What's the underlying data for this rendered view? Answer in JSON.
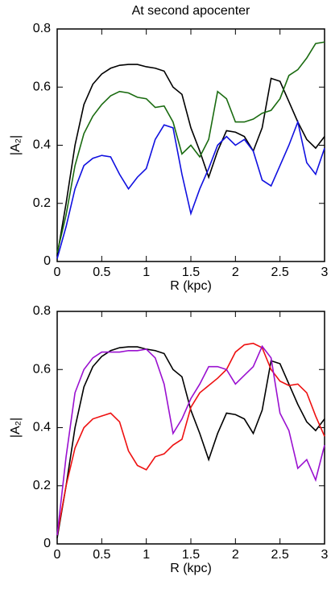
{
  "chart_data": [
    {
      "type": "line",
      "title": "At second apocenter",
      "xlabel": "R (kpc)",
      "ylabel": "|A₂|",
      "x": [
        0,
        0.1,
        0.2,
        0.3,
        0.4,
        0.5,
        0.6,
        0.7,
        0.8,
        0.9,
        1,
        1.1,
        1.2,
        1.3,
        1.4,
        1.5,
        1.6,
        1.7,
        1.8,
        1.9,
        2,
        2.1,
        2.2,
        2.3,
        2.4,
        2.5,
        2.6,
        2.7,
        2.8,
        2.9,
        3
      ],
      "series": [
        {
          "color": "#000000",
          "values": [
            0.02,
            0.2,
            0.4,
            0.54,
            0.61,
            0.645,
            0.665,
            0.675,
            0.678,
            0.678,
            0.67,
            0.665,
            0.655,
            0.6,
            0.575,
            0.46,
            0.38,
            0.29,
            0.38,
            0.45,
            0.445,
            0.43,
            0.38,
            0.46,
            0.63,
            0.62,
            0.55,
            0.48,
            0.42,
            0.39,
            0.43
          ]
        },
        {
          "color": "#1a6b10",
          "values": [
            0.03,
            0.16,
            0.33,
            0.44,
            0.5,
            0.54,
            0.57,
            0.585,
            0.58,
            0.565,
            0.56,
            0.53,
            0.535,
            0.48,
            0.37,
            0.4,
            0.36,
            0.42,
            0.585,
            0.56,
            0.48,
            0.48,
            0.49,
            0.51,
            0.52,
            0.56,
            0.64,
            0.66,
            0.7,
            0.75,
            0.755
          ]
        },
        {
          "color": "#1010e0",
          "values": [
            0.01,
            0.12,
            0.25,
            0.33,
            0.355,
            0.365,
            0.36,
            0.3,
            0.25,
            0.29,
            0.32,
            0.42,
            0.47,
            0.46,
            0.3,
            0.165,
            0.25,
            0.32,
            0.4,
            0.43,
            0.4,
            0.42,
            0.38,
            0.28,
            0.26,
            0.33,
            0.4,
            0.48,
            0.34,
            0.3,
            0.39
          ]
        }
      ],
      "xlim": [
        0,
        3
      ],
      "ylim": [
        0,
        0.8
      ],
      "xticks": [
        0,
        0.5,
        1,
        1.5,
        2,
        2.5,
        3
      ],
      "yticks": [
        0,
        0.2,
        0.4,
        0.6,
        0.8
      ]
    },
    {
      "type": "line",
      "xlabel": "R (kpc)",
      "ylabel": "|A₂|",
      "x": [
        0,
        0.1,
        0.2,
        0.3,
        0.4,
        0.5,
        0.6,
        0.7,
        0.8,
        0.9,
        1,
        1.1,
        1.2,
        1.3,
        1.4,
        1.5,
        1.6,
        1.7,
        1.8,
        1.9,
        2,
        2.1,
        2.2,
        2.3,
        2.4,
        2.5,
        2.6,
        2.7,
        2.8,
        2.9,
        3
      ],
      "series": [
        {
          "color": "#000000",
          "values": [
            0.02,
            0.2,
            0.4,
            0.54,
            0.61,
            0.645,
            0.665,
            0.675,
            0.678,
            0.678,
            0.67,
            0.665,
            0.655,
            0.6,
            0.575,
            0.46,
            0.38,
            0.29,
            0.38,
            0.45,
            0.445,
            0.43,
            0.38,
            0.46,
            0.63,
            0.62,
            0.55,
            0.48,
            0.42,
            0.39,
            0.43
          ]
        },
        {
          "color": "#ee1111",
          "values": [
            0.03,
            0.2,
            0.33,
            0.4,
            0.43,
            0.44,
            0.45,
            0.42,
            0.32,
            0.27,
            0.255,
            0.3,
            0.31,
            0.34,
            0.36,
            0.47,
            0.52,
            0.545,
            0.57,
            0.6,
            0.66,
            0.685,
            0.69,
            0.675,
            0.6,
            0.56,
            0.545,
            0.55,
            0.52,
            0.44,
            0.37
          ]
        },
        {
          "color": "#9a10d0",
          "values": [
            0.03,
            0.3,
            0.52,
            0.6,
            0.64,
            0.66,
            0.66,
            0.66,
            0.665,
            0.665,
            0.67,
            0.64,
            0.55,
            0.38,
            0.43,
            0.5,
            0.55,
            0.61,
            0.61,
            0.6,
            0.55,
            0.58,
            0.61,
            0.68,
            0.64,
            0.45,
            0.39,
            0.26,
            0.29,
            0.22,
            0.34
          ]
        }
      ],
      "xlim": [
        0,
        3
      ],
      "ylim": [
        0,
        0.8
      ],
      "xticks": [
        0,
        0.5,
        1,
        1.5,
        2,
        2.5,
        3
      ],
      "yticks": [
        0,
        0.2,
        0.4,
        0.6,
        0.8
      ]
    }
  ]
}
